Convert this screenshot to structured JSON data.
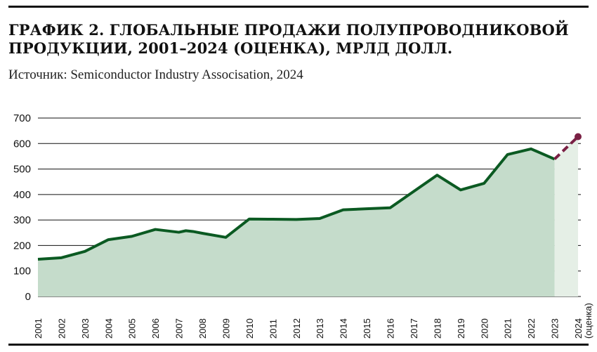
{
  "chart_data": {
    "type": "area",
    "title": "ГРАФИК 2. ГЛОБАЛЬНЫЕ ПРОДАЖИ ПОЛУПРОВОДНИКОВОЙ ПРОДУКЦИИ, 2001–2024 (ОЦЕНКА), МРЛД ДОЛЛ.",
    "subtitle": "Источник: Semiconductor Industry Associsation, 2024",
    "xlabel": "",
    "ylabel": "",
    "ylim": [
      0,
      700
    ],
    "yticks": [
      0,
      100,
      200,
      300,
      400,
      500,
      600,
      700
    ],
    "grid": true,
    "categories": [
      "2001",
      "2002",
      "2003",
      "2004",
      "2005",
      "2006",
      "2007",
      "2008",
      "2009",
      "2010",
      "2011",
      "2012",
      "2013",
      "2014",
      "2015",
      "2016",
      "2017",
      "2018",
      "2019",
      "2020",
      "2021",
      "2022",
      "2023",
      "2024 (оценка)"
    ],
    "points": [
      {
        "x": 2001,
        "y": 146
      },
      {
        "x": 2002,
        "y": 152
      },
      {
        "x": 2003,
        "y": 177
      },
      {
        "x": 2004,
        "y": 223
      },
      {
        "x": 2005,
        "y": 236
      },
      {
        "x": 2006,
        "y": 263
      },
      {
        "x": 2007,
        "y": 252
      },
      {
        "x": 2007.3,
        "y": 258
      },
      {
        "x": 2007.6,
        "y": 255
      },
      {
        "x": 2008,
        "y": 248
      },
      {
        "x": 2009,
        "y": 232
      },
      {
        "x": 2010,
        "y": 304
      },
      {
        "x": 2011,
        "y": 303
      },
      {
        "x": 2012,
        "y": 302
      },
      {
        "x": 2013,
        "y": 306
      },
      {
        "x": 2014,
        "y": 340
      },
      {
        "x": 2015,
        "y": 344
      },
      {
        "x": 2016,
        "y": 348
      },
      {
        "x": 2017,
        "y": 412
      },
      {
        "x": 2018,
        "y": 476
      },
      {
        "x": 2019,
        "y": 418
      },
      {
        "x": 2020,
        "y": 444
      },
      {
        "x": 2021,
        "y": 557
      },
      {
        "x": 2022,
        "y": 579
      },
      {
        "x": 2023,
        "y": 539
      }
    ],
    "forecast": [
      {
        "x": 2023,
        "y": 539
      },
      {
        "x": 2024,
        "y": 627
      }
    ],
    "colors": {
      "line": "#0b5a22",
      "area": "#c5dccb",
      "forecast_area": "#e5efe6",
      "forecast_line": "#7a2044",
      "grid": "#111111"
    }
  }
}
